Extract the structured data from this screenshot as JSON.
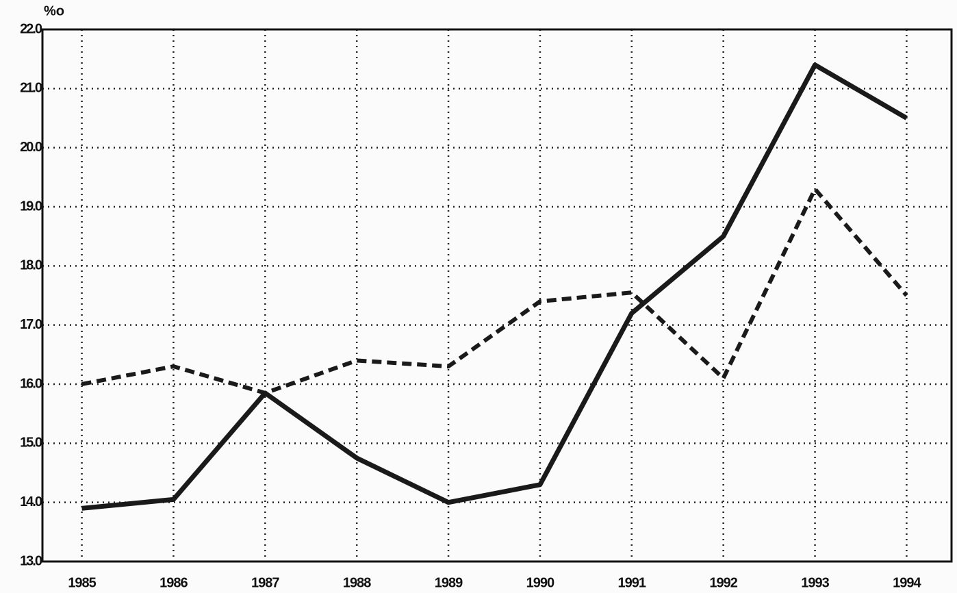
{
  "chart_data": {
    "type": "line",
    "y_label": "%o",
    "x": [
      1985,
      1986,
      1987,
      1988,
      1989,
      1990,
      1991,
      1992,
      1993,
      1994
    ],
    "xlim": [
      1984.57,
      1994.49
    ],
    "xticks": [
      1985,
      1986,
      1987,
      1988,
      1989,
      1990,
      1991,
      1992,
      1993,
      1994
    ],
    "ylim": [
      13,
      22
    ],
    "yticks": [
      {
        "value": 13,
        "label": "13.0"
      },
      {
        "value": 14,
        "label": "14.0"
      },
      {
        "value": 15,
        "label": "15.0"
      },
      {
        "value": 16,
        "label": "16.0"
      },
      {
        "value": 17,
        "label": "17.0"
      },
      {
        "value": 18,
        "label": "18.0"
      },
      {
        "value": 19,
        "label": "19.0"
      },
      {
        "value": 20,
        "label": "20.0"
      },
      {
        "value": 21,
        "label": "21.0"
      },
      {
        "value": 22,
        "label": "22.0"
      }
    ],
    "grid": true,
    "series": [
      {
        "color": "#1a1a1a",
        "line_style": "solid",
        "values": [
          13.9,
          14.05,
          15.85,
          14.75,
          14.0,
          14.3,
          17.2,
          18.5,
          21.4,
          20.5
        ]
      },
      {
        "color": "#1a1a1a",
        "line_style": "dashed",
        "values": [
          16.0,
          16.3,
          15.85,
          16.4,
          16.3,
          17.4,
          17.55,
          16.1,
          19.3,
          17.5
        ]
      }
    ]
  }
}
